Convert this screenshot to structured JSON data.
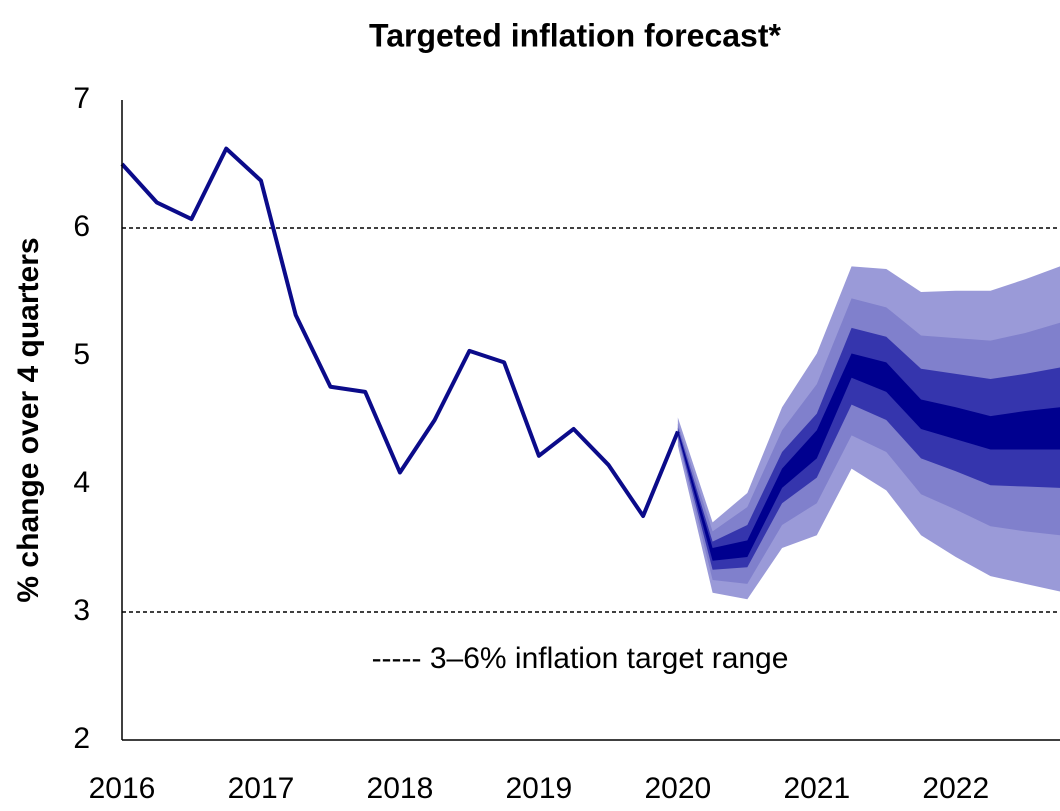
{
  "chart_data": {
    "type": "line",
    "title": "Targeted inflation forecast*",
    "y_label": "% change over 4 quarters",
    "annotation": "----- 3–6% inflation target range",
    "xlim": [
      2016,
      2022.75
    ],
    "xticks": [
      2016,
      2017,
      2018,
      2019,
      2020,
      2021,
      2022
    ],
    "ylim": [
      2,
      7
    ],
    "yticks": [
      2,
      3,
      4,
      5,
      6,
      7
    ],
    "hlines": [
      6,
      3
    ],
    "x": [
      2016,
      2016.25,
      2016.5,
      2016.75,
      2017,
      2017.25,
      2017.5,
      2017.75,
      2018,
      2018.25,
      2018.5,
      2018.75,
      2019,
      2019.25,
      2019.5,
      2019.75,
      2020
    ],
    "series": [
      {
        "color": "#0b0b8a",
        "values": [
          6.5,
          6.2,
          6.07,
          6.62,
          6.37,
          5.32,
          4.76,
          4.72,
          4.09,
          4.5,
          5.04,
          4.95,
          4.22,
          4.43,
          4.15,
          3.75,
          4.41
        ]
      }
    ],
    "fan": {
      "x": [
        2020,
        2020.25,
        2020.5,
        2020.75,
        2021,
        2021.25,
        2021.5,
        2021.75,
        2022,
        2022.25,
        2022.5,
        2022.75
      ],
      "bands": [
        {
          "color": "#9a9ad8",
          "upper": [
            4.52,
            3.7,
            3.93,
            4.6,
            5.02,
            5.7,
            5.68,
            5.5,
            5.51,
            5.51,
            5.6,
            5.7
          ],
          "lower": [
            4.3,
            3.15,
            3.1,
            3.5,
            3.6,
            4.12,
            3.95,
            3.6,
            3.43,
            3.28,
            3.22,
            3.16
          ]
        },
        {
          "color": "#8080cc",
          "upper": [
            4.47,
            3.63,
            3.82,
            4.42,
            4.78,
            5.45,
            5.38,
            5.16,
            5.14,
            5.12,
            5.18,
            5.26
          ],
          "lower": [
            4.35,
            3.25,
            3.22,
            3.68,
            3.85,
            4.38,
            4.25,
            3.92,
            3.8,
            3.67,
            3.63,
            3.6
          ]
        },
        {
          "color": "#3535ad",
          "upper": [
            4.44,
            3.55,
            3.68,
            4.25,
            4.55,
            5.22,
            5.15,
            4.9,
            4.86,
            4.82,
            4.86,
            4.91
          ],
          "lower": [
            4.38,
            3.33,
            3.35,
            3.85,
            4.05,
            4.62,
            4.5,
            4.2,
            4.1,
            3.99,
            3.98,
            3.97
          ]
        },
        {
          "color": "#00008f",
          "upper": [
            4.42,
            3.5,
            3.56,
            4.12,
            4.42,
            5.02,
            4.95,
            4.66,
            4.6,
            4.53,
            4.57,
            4.6
          ],
          "lower": [
            4.4,
            3.4,
            3.43,
            3.97,
            4.2,
            4.83,
            4.72,
            4.43,
            4.35,
            4.27,
            4.27,
            4.27
          ]
        }
      ]
    }
  }
}
